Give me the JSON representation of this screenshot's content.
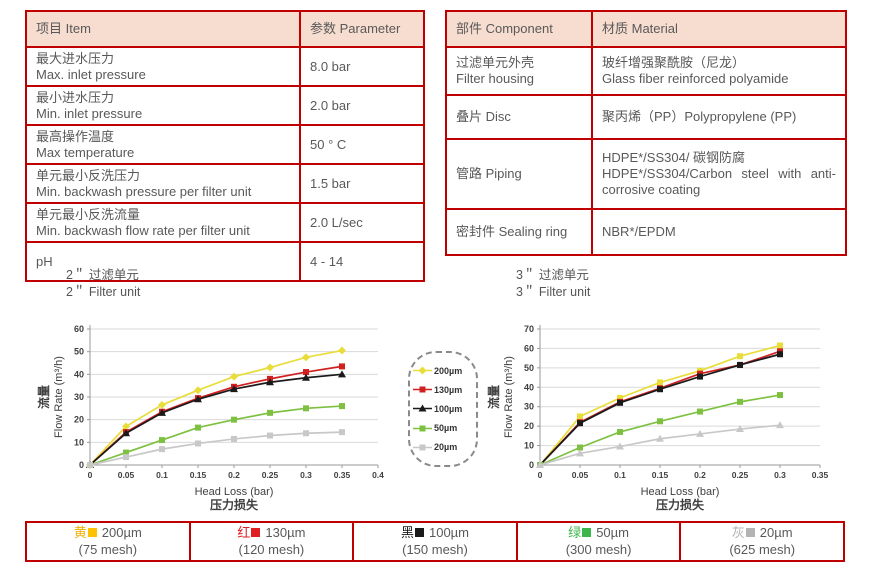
{
  "colors": {
    "table_border": "#c00000",
    "header_bg": "#f7dcd0",
    "text": "#595959",
    "grid": "#d9d9d9",
    "axis": "#9a9a9a"
  },
  "spec_table": {
    "headers": {
      "item": "项目 Item",
      "parameter": "参数 Parameter"
    },
    "rows": [
      {
        "zh": "最大进水压力",
        "en": "Max. inlet pressure",
        "value": "8.0 bar"
      },
      {
        "zh": "最小进水压力",
        "en": "Min. inlet pressure",
        "value": "2.0 bar"
      },
      {
        "zh": "最高操作温度",
        "en": "Max temperature",
        "value": "50 ° C"
      },
      {
        "zh": "单元最小反洗压力",
        "en": "Min. backwash pressure per filter unit",
        "value": "1.5 bar"
      },
      {
        "zh": "单元最小反洗流量",
        "en": "Min. backwash flow rate per filter unit",
        "value": "2.0 L/sec"
      },
      {
        "zh": "pH",
        "en": "",
        "value": "4 - 14"
      }
    ]
  },
  "material_table": {
    "headers": {
      "component": "部件 Component",
      "material": "材质 Material"
    },
    "rows": [
      {
        "zh": "过滤单元外壳",
        "en": "Filter housing",
        "material_zh": "玻纤增强聚酰胺（尼龙）",
        "material_en": "Glass fiber reinforced polyamide"
      },
      {
        "zh": "叠片 Disc",
        "en": "",
        "material_zh": "聚丙烯（PP）Polypropylene (PP)",
        "material_en": ""
      },
      {
        "zh": "管路 Piping",
        "en": "",
        "material_zh": "HDPE*/SS304/ 碳钢防腐",
        "material_en": "HDPE*/SS304/Carbon steel with anti-corrosive coating"
      },
      {
        "zh": "密封件 Sealing ring",
        "en": "",
        "material_zh": "NBR*/EPDM",
        "material_en": ""
      }
    ]
  },
  "chart_data": [
    {
      "type": "line",
      "title_zh": "2＂ 过滤单元",
      "title_en": "2＂ Filter unit",
      "xlabel": "Head Loss (bar)",
      "xlabel_zh": "压力损失",
      "ylabel_zh": "流量",
      "ylabel": "Flow Rate (m³/h)",
      "xlim": [
        0,
        0.4
      ],
      "ylim": [
        0,
        60
      ],
      "ytick_step": 10,
      "xticks": [
        0,
        0.05,
        0.1,
        0.15,
        0.2,
        0.25,
        0.3,
        0.35,
        0.4
      ],
      "grid": true,
      "legend_position": "center-between-charts",
      "x": [
        0,
        0.05,
        0.1,
        0.15,
        0.2,
        0.25,
        0.3,
        0.35
      ],
      "series": [
        {
          "name": "200µm",
          "color": "#e9dd3a",
          "marker": "diamond",
          "values": [
            0,
            17,
            26.5,
            33,
            39,
            43,
            47.5,
            50.5
          ]
        },
        {
          "name": "130µm",
          "color": "#d02020",
          "marker": "square",
          "values": [
            0,
            14.5,
            23.5,
            29.5,
            34.5,
            38,
            41,
            43.5
          ]
        },
        {
          "name": "100µm",
          "color": "#1a1a1a",
          "marker": "triangle",
          "values": [
            0,
            14,
            23,
            29,
            33.5,
            36.5,
            38.5,
            40
          ]
        },
        {
          "name": "50µm",
          "color": "#7ec141",
          "marker": "square",
          "values": [
            0,
            5.5,
            11,
            16.5,
            20,
            23,
            25,
            26
          ]
        },
        {
          "name": "20µm",
          "color": "#c8c8c8",
          "marker": "square",
          "values": [
            0,
            3.5,
            7,
            9.5,
            11.5,
            13,
            14,
            14.5
          ]
        }
      ]
    },
    {
      "type": "line",
      "title_zh": "3＂ 过滤单元",
      "title_en": "3＂ Filter unit",
      "xlabel": "Head Loss (bar)",
      "xlabel_zh": "压力损失",
      "ylabel_zh": "流量",
      "ylabel": "Flow Rate (m³/h)",
      "xlim": [
        0,
        0.35
      ],
      "ylim": [
        0,
        70
      ],
      "ytick_step": 10,
      "xticks": [
        0,
        0.05,
        0.1,
        0.15,
        0.2,
        0.25,
        0.3,
        0.35
      ],
      "grid": true,
      "x": [
        0,
        0.05,
        0.1,
        0.15,
        0.2,
        0.25,
        0.3
      ],
      "series": [
        {
          "name": "200µm",
          "color": "#e9dd3a",
          "marker": "square",
          "values": [
            0,
            25,
            34.5,
            42.5,
            48.5,
            56,
            61.5
          ]
        },
        {
          "name": "130µm",
          "color": "#d02020",
          "marker": "square",
          "values": [
            0,
            22,
            32.5,
            39.5,
            47,
            51.5,
            58.5
          ]
        },
        {
          "name": "100µm",
          "color": "#1a1a1a",
          "marker": "square",
          "values": [
            0,
            21.5,
            32,
            39,
            45.5,
            51.5,
            57
          ]
        },
        {
          "name": "50µm",
          "color": "#7ec141",
          "marker": "square",
          "values": [
            0,
            9,
            17,
            22.5,
            27.5,
            32.5,
            36
          ]
        },
        {
          "name": "20µm",
          "color": "#c8c8c8",
          "marker": "triangle",
          "values": [
            0,
            6,
            9.5,
            13.5,
            16,
            18.5,
            20.5
          ]
        }
      ]
    }
  ],
  "center_legend": {
    "items": [
      {
        "label": "200µm",
        "color": "#e9dd3a",
        "marker": "diamond"
      },
      {
        "label": "130µm",
        "color": "#d02020",
        "marker": "square"
      },
      {
        "label": "100µm",
        "color": "#1a1a1a",
        "marker": "triangle"
      },
      {
        "label": "50µm",
        "color": "#7ec141",
        "marker": "square"
      },
      {
        "label": "20µm",
        "color": "#c8c8c8",
        "marker": "square"
      }
    ]
  },
  "mesh_strip": {
    "cells": [
      {
        "cn": "黄",
        "color": "#f0b000",
        "swatch": "#ffc000",
        "size": "200µm",
        "mesh": "(75 mesh)"
      },
      {
        "cn": "红",
        "color": "#e02020",
        "swatch": "#e02020",
        "size": "130µm",
        "mesh": "(120 mesh)"
      },
      {
        "cn": "黑",
        "color": "#1a1a1a",
        "swatch": "#1a1a1a",
        "size": "100µm",
        "mesh": "(150 mesh)"
      },
      {
        "cn": "绿",
        "color": "#3cb54a",
        "swatch": "#3cb54a",
        "size": "50µm",
        "mesh": "(300 mesh)"
      },
      {
        "cn": "灰",
        "color": "#b4b4b4",
        "swatch": "#b4b4b4",
        "size": "20µm",
        "mesh": "(625 mesh)"
      }
    ]
  }
}
